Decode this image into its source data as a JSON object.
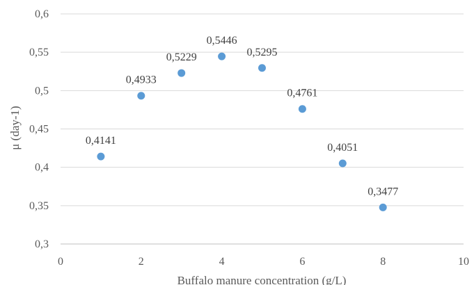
{
  "chart_data": {
    "type": "scatter",
    "title": "",
    "xlabel": "Buffalo manure concentration (g/L)",
    "ylabel": "μ (day-1)",
    "xlim": [
      0,
      10
    ],
    "ylim": [
      0.3,
      0.6
    ],
    "x_ticks": [
      0,
      2,
      4,
      6,
      8,
      10
    ],
    "x_tick_labels": [
      "0",
      "2",
      "4",
      "6",
      "8",
      "10"
    ],
    "y_ticks": [
      0.3,
      0.35,
      0.4,
      0.45,
      0.5,
      0.55,
      0.6
    ],
    "y_tick_labels": [
      "0,3",
      "0,35",
      "0,4",
      "0,45",
      "0,5",
      "0,55",
      "0,6"
    ],
    "grid": "horizontal",
    "legend": "none",
    "marker_color": "#5b9bd5",
    "series": [
      {
        "x": [
          1,
          2,
          3,
          4,
          5,
          6,
          7,
          8
        ],
        "y": [
          0.4141,
          0.4933,
          0.5229,
          0.5446,
          0.5295,
          0.4761,
          0.4051,
          0.3477
        ],
        "labels": [
          "0,4141",
          "0,4933",
          "0,5229",
          "0,5446",
          "0,5295",
          "0,4761",
          "0,4051",
          "0,3477"
        ]
      }
    ]
  }
}
